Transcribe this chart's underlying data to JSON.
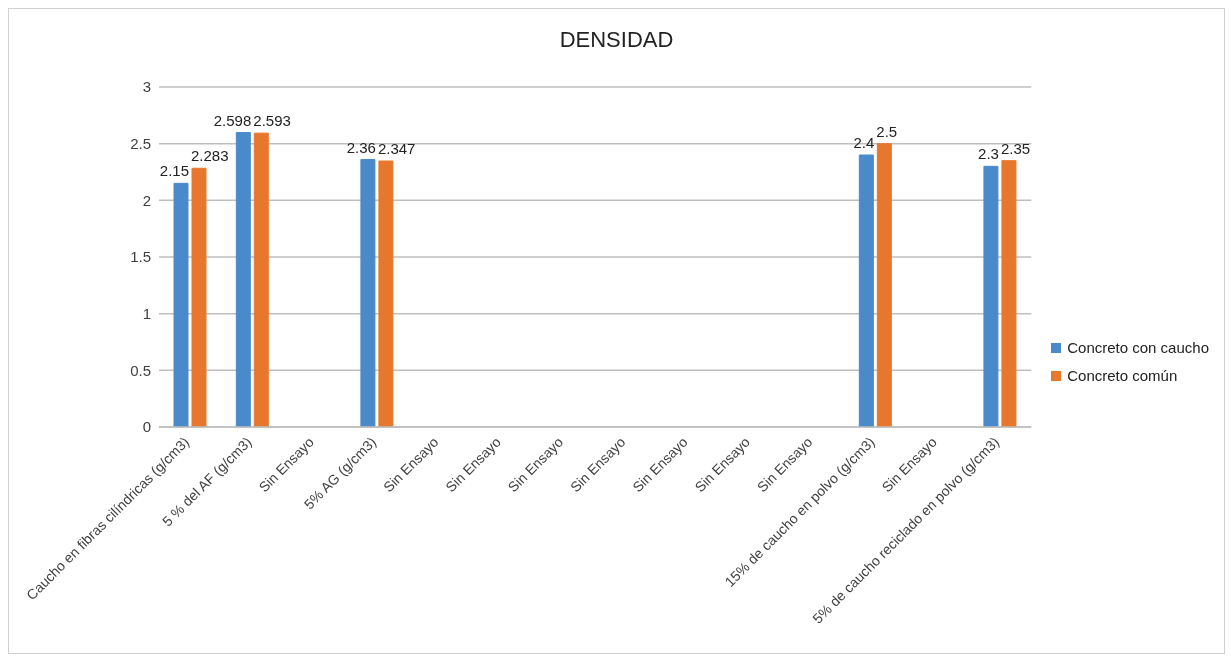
{
  "chart_data": {
    "type": "bar",
    "title": "DENSIDAD",
    "categories": [
      "Caucho en fibras cilíndricas (g/cm3)",
      "5 % del AF (g/cm3)",
      "Sin Ensayo",
      "5% AG (g/cm3)",
      "Sin Ensayo",
      "Sin Ensayo",
      "Sin Ensayo",
      "Sin Ensayo",
      "Sin Ensayo",
      "Sin Ensayo",
      "Sin Ensayo",
      "15% de caucho en polvo (g/cm3)",
      "Sin Ensayo",
      "5% de caucho reciclado en polvo (g/cm3)"
    ],
    "series": [
      {
        "name": "Concreto con caucho",
        "color": "#4a8acb",
        "values": [
          2.15,
          2.598,
          null,
          2.36,
          null,
          null,
          null,
          null,
          null,
          null,
          null,
          2.4,
          null,
          2.3
        ]
      },
      {
        "name": "Concreto común",
        "color": "#e8772e",
        "values": [
          2.283,
          2.593,
          null,
          2.347,
          null,
          null,
          null,
          null,
          null,
          null,
          null,
          2.5,
          null,
          2.35
        ]
      }
    ],
    "ylim": [
      0,
      3
    ],
    "yticks": [
      0,
      0.5,
      1,
      1.5,
      2,
      2.5,
      3
    ],
    "grid": "y",
    "legend": "right",
    "data_labels": true
  }
}
